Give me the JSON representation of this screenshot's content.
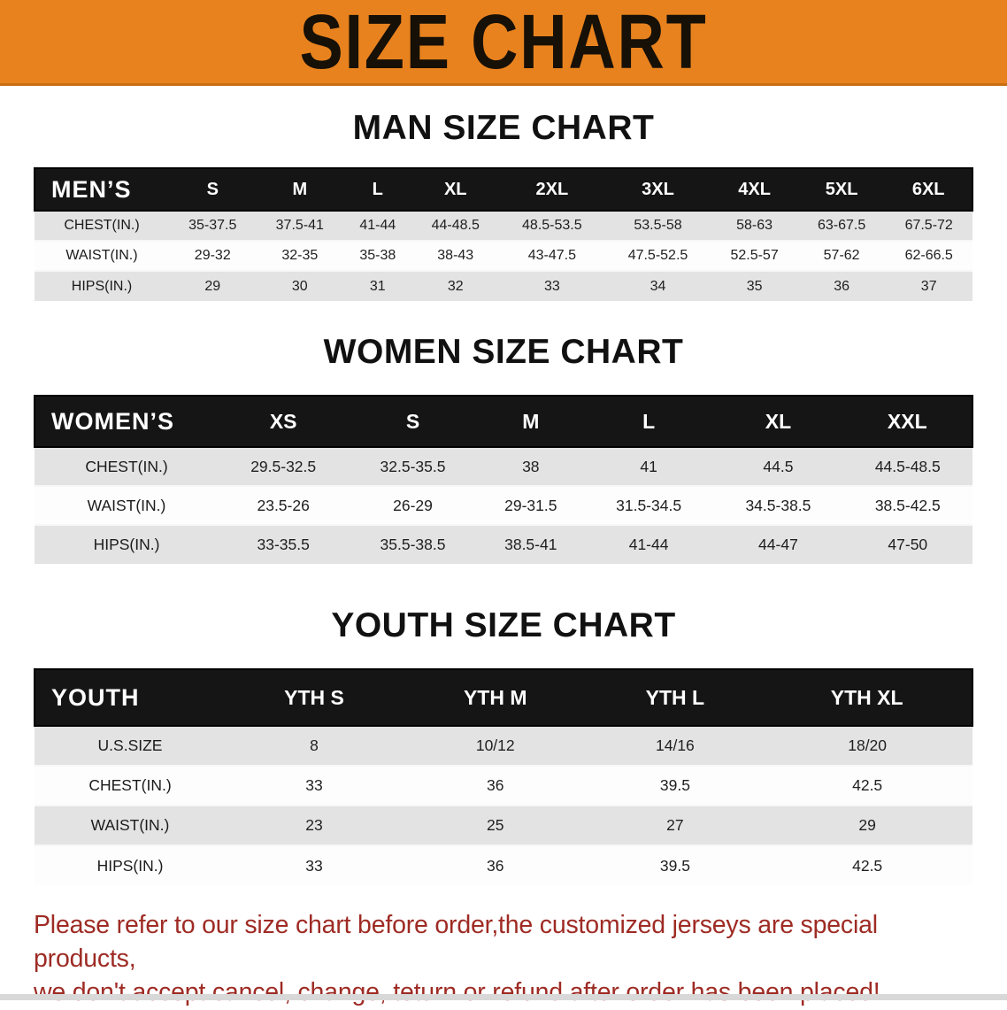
{
  "banner": {
    "title": "SIZE CHART",
    "bg_color": "#E8821E",
    "text_color": "#161007"
  },
  "colors": {
    "table_header_band": "#151515",
    "row_stripe": "#e3e3e3",
    "disclaimer_text": "#9E2B24"
  },
  "men": {
    "heading": "MAN SIZE CHART",
    "table": {
      "label": "MEN’S",
      "columns": [
        "S",
        "M",
        "L",
        "XL",
        "2XL",
        "3XL",
        "4XL",
        "5XL",
        "6XL"
      ],
      "rows": [
        {
          "label": "CHEST(IN.)",
          "values": [
            "35-37.5",
            "37.5-41",
            "41-44",
            "44-48.5",
            "48.5-53.5",
            "53.5-58",
            "58-63",
            "63-67.5",
            "67.5-72"
          ]
        },
        {
          "label": "WAIST(IN.)",
          "values": [
            "29-32",
            "32-35",
            "35-38",
            "38-43",
            "43-47.5",
            "47.5-52.5",
            "52.5-57",
            "57-62",
            "62-66.5"
          ]
        },
        {
          "label": "HIPS(IN.)",
          "values": [
            "29",
            "30",
            "31",
            "32",
            "33",
            "34",
            "35",
            "36",
            "37"
          ]
        }
      ]
    }
  },
  "women": {
    "heading": "WOMEN SIZE CHART",
    "table": {
      "label": "WOMEN’S",
      "columns": [
        "XS",
        "S",
        "M",
        "L",
        "XL",
        "XXL"
      ],
      "rows": [
        {
          "label": "CHEST(IN.)",
          "values": [
            "29.5-32.5",
            "32.5-35.5",
            "38",
            "41",
            "44.5",
            "44.5-48.5"
          ]
        },
        {
          "label": "WAIST(IN.)",
          "values": [
            "23.5-26",
            "26-29",
            "29-31.5",
            "31.5-34.5",
            "34.5-38.5",
            "38.5-42.5"
          ]
        },
        {
          "label": "HIPS(IN.)",
          "values": [
            "33-35.5",
            "35.5-38.5",
            "38.5-41",
            "41-44",
            "44-47",
            "47-50"
          ]
        }
      ]
    }
  },
  "youth": {
    "heading": "YOUTH SIZE CHART",
    "table": {
      "label": "YOUTH",
      "columns": [
        "YTH S",
        "YTH M",
        "YTH L",
        "YTH XL"
      ],
      "rows": [
        {
          "label": "U.S.SIZE",
          "values": [
            "8",
            "10/12",
            "14/16",
            "18/20"
          ]
        },
        {
          "label": "CHEST(IN.)",
          "values": [
            "33",
            "36",
            "39.5",
            "42.5"
          ]
        },
        {
          "label": "WAIST(IN.)",
          "values": [
            "23",
            "25",
            "27",
            "29"
          ]
        },
        {
          "label": "HIPS(IN.)",
          "values": [
            "33",
            "36",
            "39.5",
            "42.5"
          ]
        }
      ]
    }
  },
  "disclaimer": {
    "line1": "Please refer to our size chart before order,the customized jerseys are special products,",
    "line2": "we don't accept cancel, change, teturn or refund after order has been placed!"
  }
}
